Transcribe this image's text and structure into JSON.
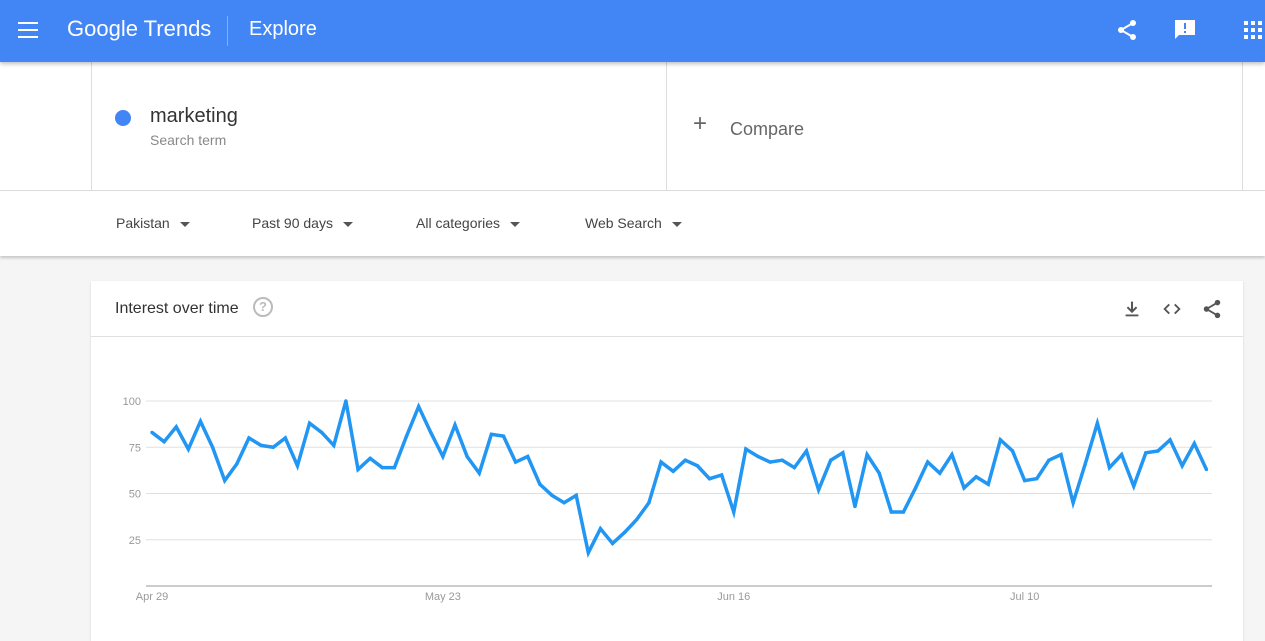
{
  "header": {
    "logo": "Google Trends",
    "title": "Explore",
    "accent": "#4285f4"
  },
  "search": {
    "term": "marketing",
    "term_type": "Search term",
    "term_color": "#4285f4",
    "compare": "Compare"
  },
  "filters": {
    "region": "Pakistan",
    "time": "Past 90 days",
    "category": "All categories",
    "property": "Web Search"
  },
  "card": {
    "title": "Interest over time",
    "help": "?"
  },
  "chart_data": {
    "type": "line",
    "title": "",
    "xlabel": "",
    "ylabel": "",
    "ylim": [
      0,
      100
    ],
    "grid": true,
    "y_ticks": [
      "25",
      "50",
      "75",
      "100"
    ],
    "x_ticks": [
      "Apr 29",
      "May 23",
      "Jun 16",
      "Jul 10"
    ],
    "x": [
      "Apr 29",
      "Apr 30",
      "May 1",
      "May 2",
      "May 3",
      "May 4",
      "May 5",
      "May 6",
      "May 7",
      "May 8",
      "May 9",
      "May 10",
      "May 11",
      "May 12",
      "May 13",
      "May 14",
      "May 15",
      "May 16",
      "May 17",
      "May 18",
      "May 19",
      "May 20",
      "May 21",
      "May 22",
      "May 23",
      "May 24",
      "May 25",
      "May 26",
      "May 27",
      "May 28",
      "May 29",
      "May 30",
      "May 31",
      "Jun 1",
      "Jun 2",
      "Jun 3",
      "Jun 4",
      "Jun 5",
      "Jun 6",
      "Jun 7",
      "Jun 8",
      "Jun 9",
      "Jun 10",
      "Jun 11",
      "Jun 12",
      "Jun 13",
      "Jun 14",
      "Jun 15",
      "Jun 16",
      "Jun 17",
      "Jun 18",
      "Jun 19",
      "Jun 20",
      "Jun 21",
      "Jun 22",
      "Jun 23",
      "Jun 24",
      "Jun 25",
      "Jun 26",
      "Jun 27",
      "Jun 28",
      "Jun 29",
      "Jun 30",
      "Jul 1",
      "Jul 2",
      "Jul 3",
      "Jul 4",
      "Jul 5",
      "Jul 6",
      "Jul 7",
      "Jul 8",
      "Jul 9",
      "Jul 10",
      "Jul 11",
      "Jul 12",
      "Jul 13",
      "Jul 14",
      "Jul 15",
      "Jul 16",
      "Jul 17",
      "Jul 18",
      "Jul 19",
      "Jul 20",
      "Jul 21",
      "Jul 22",
      "Jul 23",
      "Jul 24",
      "Jul 25"
    ],
    "series": [
      {
        "color": "#2196f3",
        "values": [
          83,
          78,
          86,
          74,
          89,
          75,
          57,
          66,
          80,
          76,
          75,
          80,
          65,
          88,
          83,
          76,
          100,
          63,
          69,
          64,
          64,
          81,
          97,
          83,
          70,
          87,
          70,
          61,
          82,
          81,
          67,
          70,
          55,
          49,
          45,
          49,
          18,
          31,
          23,
          29,
          36,
          45,
          67,
          62,
          68,
          65,
          58,
          60,
          40,
          74,
          70,
          67,
          68,
          64,
          73,
          52,
          68,
          72,
          43,
          71,
          61,
          40,
          40,
          53,
          67,
          61,
          71,
          53,
          59,
          55,
          79,
          73,
          57,
          58,
          68,
          71,
          45,
          66,
          88,
          64,
          71,
          54,
          72,
          73,
          79,
          65,
          77,
          63
        ]
      }
    ]
  }
}
